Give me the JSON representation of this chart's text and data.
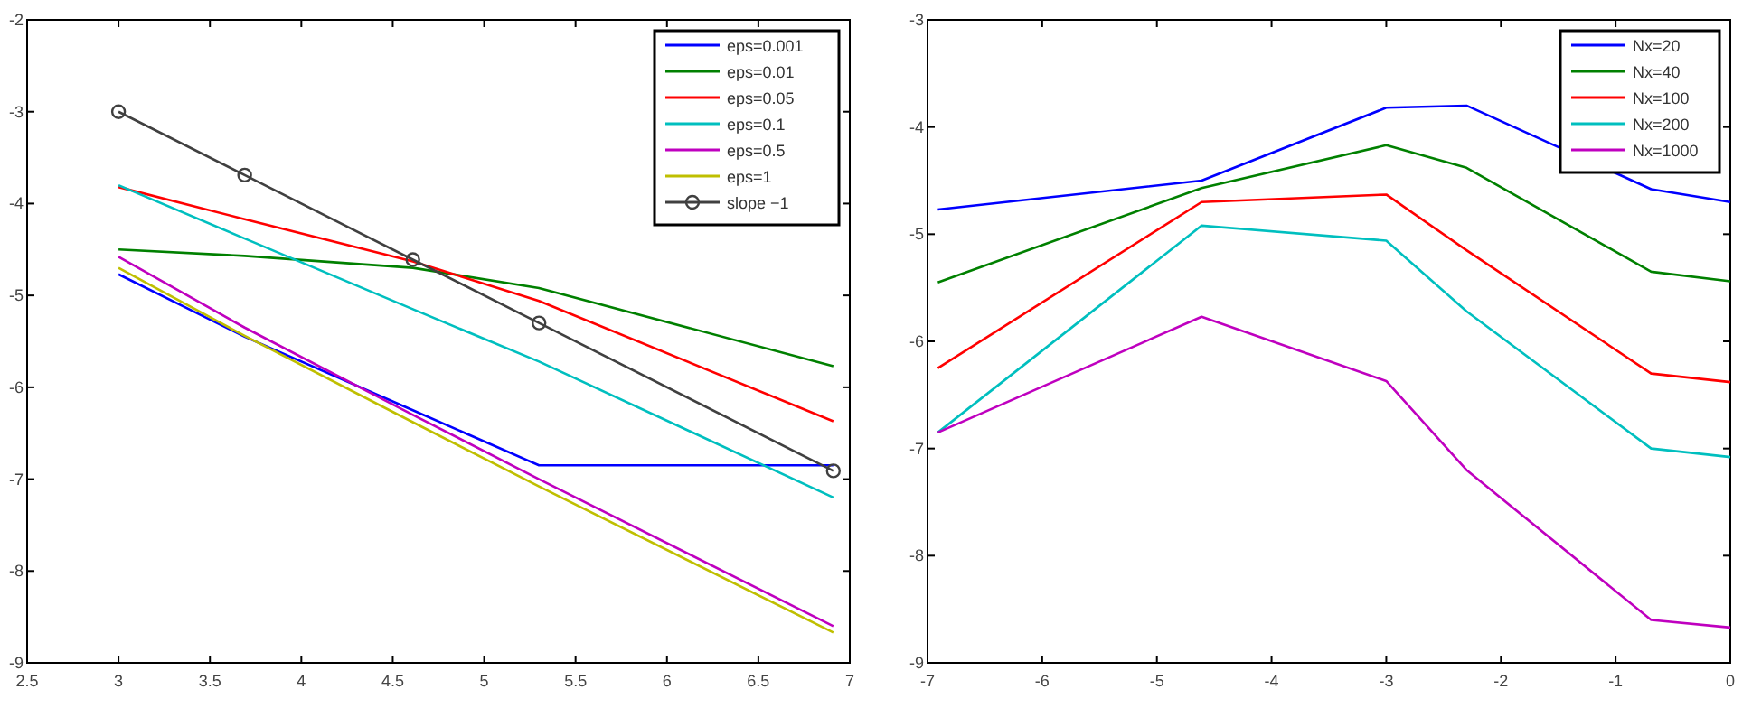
{
  "chart_data": [
    {
      "type": "line",
      "x": [
        3.0,
        3.69,
        4.61,
        5.3,
        6.91
      ],
      "xlim": [
        2.5,
        7
      ],
      "xticks": [
        2.5,
        3,
        3.5,
        4,
        4.5,
        5,
        5.5,
        6,
        6.5,
        7
      ],
      "ylim": [
        -9,
        -2
      ],
      "yticks": [
        -9,
        -8,
        -7,
        -6,
        -5,
        -4,
        -3,
        -2
      ],
      "legend": "top right",
      "series": [
        {
          "name": "eps=0.001",
          "color": "#0000ff",
          "values": [
            -4.77,
            -5.45,
            -6.25,
            -6.85,
            -6.85
          ]
        },
        {
          "name": "eps=0.01",
          "color": "#008000",
          "values": [
            -4.5,
            -4.57,
            -4.7,
            -4.92,
            -5.77
          ]
        },
        {
          "name": "eps=0.05",
          "color": "#ff0000",
          "values": [
            -3.82,
            -4.17,
            -4.63,
            -5.06,
            -6.37
          ]
        },
        {
          "name": "eps=0.1",
          "color": "#00bfbf",
          "values": [
            -3.8,
            -4.38,
            -5.15,
            -5.72,
            -7.2
          ]
        },
        {
          "name": "eps=0.5",
          "color": "#bf00bf",
          "values": [
            -4.58,
            -5.35,
            -6.3,
            -7.0,
            -8.6
          ]
        },
        {
          "name": "eps=1",
          "color": "#bfbf00",
          "values": [
            -4.7,
            -5.44,
            -6.38,
            -7.08,
            -8.67
          ]
        },
        {
          "name": "slope −1",
          "color": "#404040",
          "marker": "circle",
          "values": [
            -3.0,
            -3.69,
            -4.61,
            -5.3,
            -6.91
          ]
        }
      ]
    },
    {
      "type": "line",
      "x": [
        -6.91,
        -4.61,
        -3.0,
        -2.3,
        -0.69,
        0
      ],
      "xlim": [
        -7,
        0
      ],
      "xticks": [
        -7,
        -6,
        -5,
        -4,
        -3,
        -2,
        -1,
        0
      ],
      "ylim": [
        -9,
        -3
      ],
      "yticks": [
        -9,
        -8,
        -7,
        -6,
        -5,
        -4,
        -3
      ],
      "legend": "top right",
      "series": [
        {
          "name": "Nx=20",
          "color": "#0000ff",
          "values": [
            -4.77,
            -4.5,
            -3.82,
            -3.8,
            -4.58,
            -4.7
          ]
        },
        {
          "name": "Nx=40",
          "color": "#008000",
          "values": [
            -5.45,
            -4.57,
            -4.17,
            -4.38,
            -5.35,
            -5.44
          ]
        },
        {
          "name": "Nx=100",
          "color": "#ff0000",
          "values": [
            -6.25,
            -4.7,
            -4.63,
            -5.15,
            -6.3,
            -6.38
          ]
        },
        {
          "name": "Nx=200",
          "color": "#00bfbf",
          "values": [
            -6.85,
            -4.92,
            -5.06,
            -5.72,
            -7.0,
            -7.08
          ]
        },
        {
          "name": "Nx=1000",
          "color": "#bf00bf",
          "values": [
            -6.85,
            -5.77,
            -6.37,
            -7.2,
            -8.6,
            -8.67
          ]
        }
      ]
    }
  ]
}
